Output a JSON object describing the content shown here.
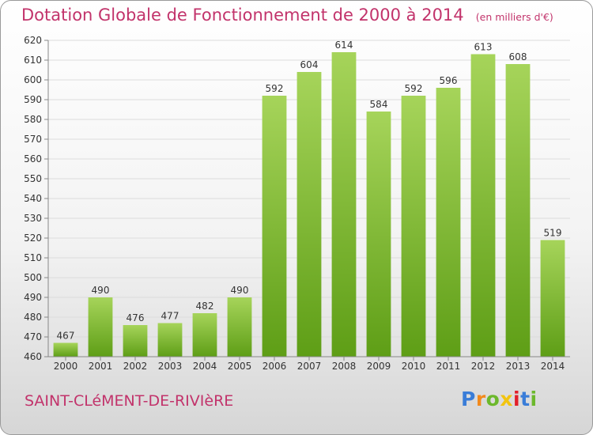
{
  "chart_data": {
    "type": "bar",
    "title": "Dotation Globale de Fonctionnement de 2000 à 2014",
    "unit_note": "(en milliers d'€)",
    "categories": [
      "2000",
      "2001",
      "2002",
      "2003",
      "2004",
      "2005",
      "2006",
      "2007",
      "2008",
      "2009",
      "2010",
      "2011",
      "2012",
      "2013",
      "2014"
    ],
    "values": [
      467,
      490,
      476,
      477,
      482,
      490,
      592,
      604,
      614,
      584,
      592,
      596,
      613,
      608,
      519
    ],
    "ylim": [
      460,
      620
    ],
    "yticks": [
      460,
      470,
      480,
      490,
      500,
      510,
      520,
      530,
      540,
      550,
      560,
      570,
      580,
      590,
      600,
      610,
      620
    ],
    "grid": true,
    "bar_color_top": "#a6d45a",
    "bar_color_bottom": "#5e9e16"
  },
  "commune_name": "SAINT-CLéMENT-DE-RIVIèRE",
  "logo": {
    "letters": [
      "P",
      "r",
      "o",
      "x",
      "i",
      "t",
      "i"
    ],
    "colors": [
      "#3a7dd8",
      "#f28a1c",
      "#6cb82c",
      "#f2c40f",
      "#e2202a",
      "#3a7dd8",
      "#6cb82c"
    ]
  }
}
